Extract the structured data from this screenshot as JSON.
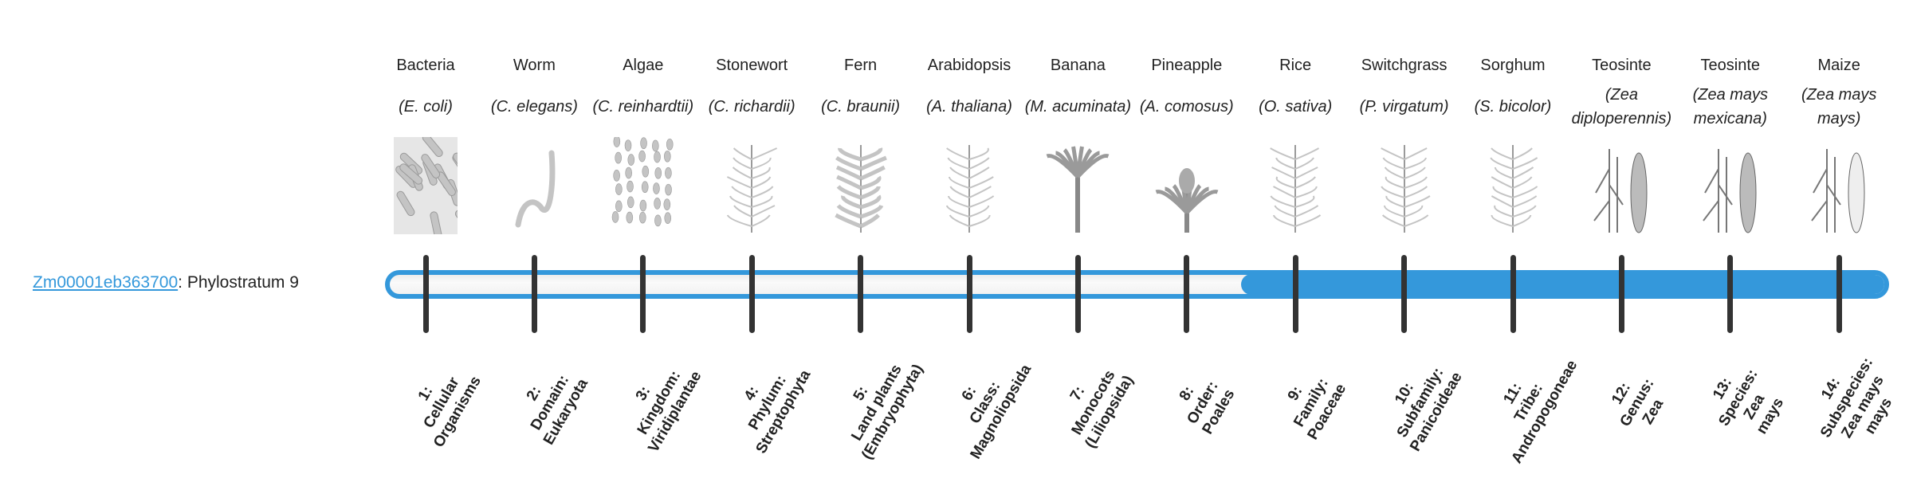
{
  "gene": {
    "id": "Zm00001eb363700",
    "separator": ": ",
    "stratum_text": "Phylostratum 9",
    "phylostratum": 9
  },
  "colors": {
    "accent": "#3498db",
    "tick": "#333333",
    "empty": "#f4f4f4"
  },
  "organisms": [
    {
      "name": "Bacteria",
      "sci": "(E. coli)",
      "icon": "bacteria-icon"
    },
    {
      "name": "Worm",
      "sci": "(C. elegans)",
      "icon": "worm-icon"
    },
    {
      "name": "Algae",
      "sci": "(C. reinhardtii)",
      "icon": "algae-icon"
    },
    {
      "name": "Stonewort",
      "sci": "(C. richardii)",
      "icon": "stonewort-icon"
    },
    {
      "name": "Fern",
      "sci": "(C. braunii)",
      "icon": "fern-icon"
    },
    {
      "name": "Arabidopsis",
      "sci": "(A. thaliana)",
      "icon": "arabidopsis-icon"
    },
    {
      "name": "Banana",
      "sci": "(M. acuminata)",
      "icon": "banana-plant-icon"
    },
    {
      "name": "Pineapple",
      "sci": "(A. comosus)",
      "icon": "pineapple-icon"
    },
    {
      "name": "Rice",
      "sci": "(O. sativa)",
      "icon": "rice-icon"
    },
    {
      "name": "Switchgrass",
      "sci": "(P. virgatum)",
      "icon": "switchgrass-icon"
    },
    {
      "name": "Sorghum",
      "sci": "(S. bicolor)",
      "icon": "sorghum-icon"
    },
    {
      "name": "Teosinte",
      "sci": "(Zea diploperennis)",
      "icon": "teosinte-icon"
    },
    {
      "name": "Teosinte",
      "sci": "(Zea mays mexicana)",
      "icon": "teosinte-icon"
    },
    {
      "name": "Maize",
      "sci": "(Zea mays mays)",
      "icon": "maize-icon"
    }
  ],
  "levels": [
    [
      "1:",
      "Cellular",
      "Organisms"
    ],
    [
      "2:",
      "Domain:",
      "Eukaryota"
    ],
    [
      "3:",
      "Kingdom:",
      "Viridiplantae"
    ],
    [
      "4:",
      "Phylum:",
      "Streptophyta"
    ],
    [
      "5:",
      "Land plants",
      "(Embryophyta)"
    ],
    [
      "6:",
      "Class:",
      "Magnoliopsida"
    ],
    [
      "7:",
      "Monocots",
      "(Liliopsida)"
    ],
    [
      "8:",
      "Order:",
      "Poales"
    ],
    [
      "9:",
      "Family:",
      "Poaceae"
    ],
    [
      "10:",
      "Subfamily:",
      "Panicoideae"
    ],
    [
      "11:",
      "Tribe:",
      "Andropogoneae"
    ],
    [
      "12:",
      "Genus:",
      "Zea"
    ],
    [
      "13:",
      "Species:",
      "Zea",
      "mays"
    ],
    [
      "14:",
      "Subspecies:",
      "Zea mays",
      "mays"
    ]
  ]
}
